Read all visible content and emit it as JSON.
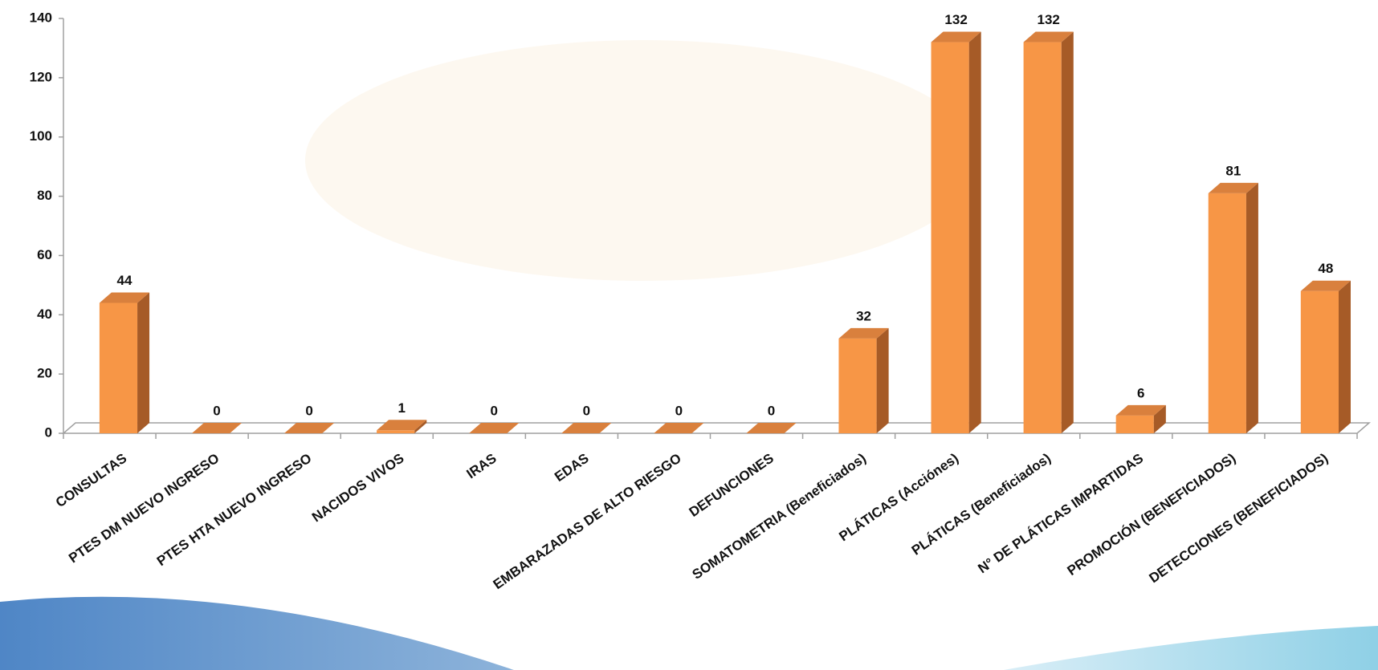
{
  "chart_data": {
    "type": "bar",
    "categories": [
      "CONSULTAS",
      "PTES DM NUEVO INGRESO",
      "PTES HTA NUEVO INGRESO",
      "NACIDOS VIVOS",
      "IRAS",
      "EDAS",
      "EMBARAZADAS DE ALTO RIESGO",
      "DEFUNCIONES",
      "SOMATOMETRIA (Beneficiados)",
      "PLÁTICAS (Acciónes)",
      "PLÁTICAS (Beneficiados)",
      "N° DE PLÁTICAS IMPARTIDAS",
      "PROMOCIÓN (BENEFICIADOS)",
      "DETECCIONES (BENEFICIADOS)"
    ],
    "values": [
      44,
      0,
      0,
      1,
      0,
      0,
      0,
      0,
      32,
      132,
      132,
      6,
      81,
      48
    ],
    "color": "#f79646",
    "ylim": [
      0,
      140
    ],
    "yticks": [
      0,
      20,
      40,
      60,
      80,
      100,
      120,
      140
    ]
  }
}
